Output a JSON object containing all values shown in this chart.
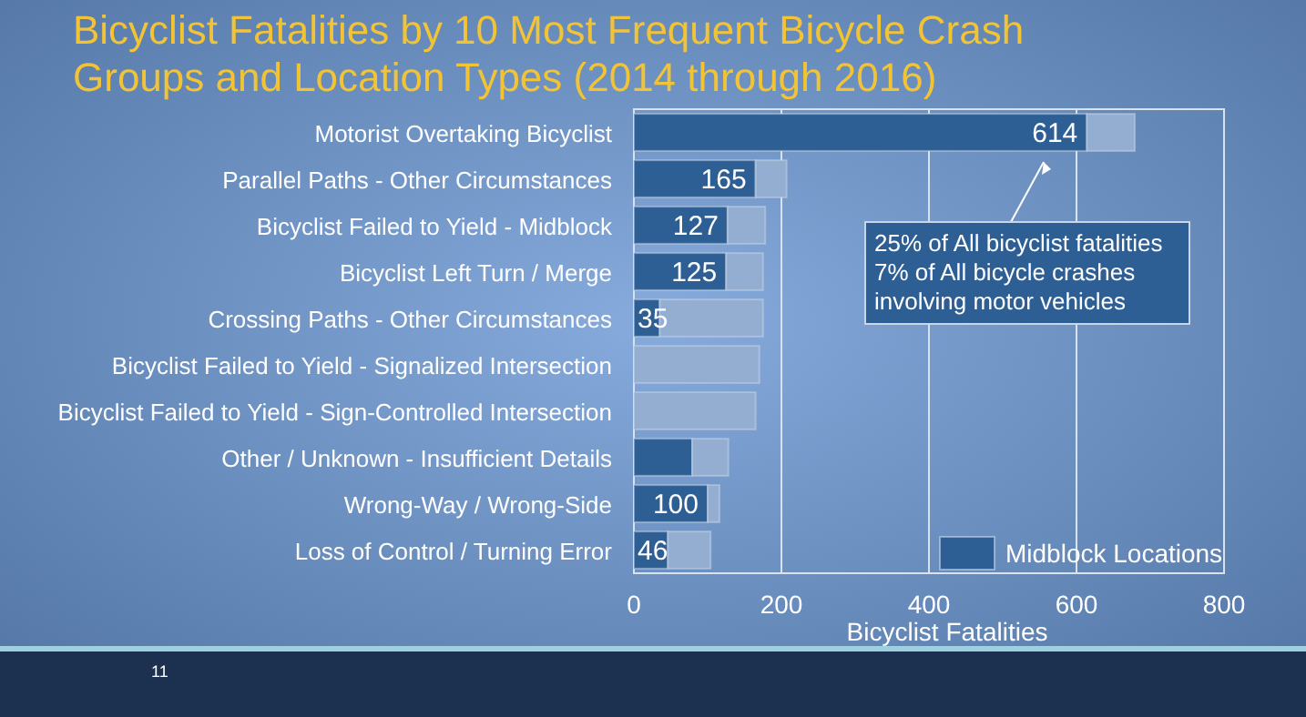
{
  "chart_data": {
    "type": "bar",
    "orientation": "horizontal",
    "stacked": true,
    "title": "Bicyclist Fatalities by 10 Most Frequent Bicycle Crash Groups and Location Types (2014 through 2016)",
    "xlabel": "Bicyclist Fatalities",
    "categories": [
      "Motorist Overtaking Bicyclist",
      "Parallel Paths - Other Circumstances",
      "Bicyclist Failed to Yield - Midblock",
      "Bicyclist Left Turn / Merge",
      "Crossing Paths - Other Circumstances",
      "Bicyclist Failed to Yield - Signalized Intersection",
      "Bicyclist Failed to Yield - Sign-Controlled Intersection",
      "Other / Unknown - Insufficient Details",
      "Wrong-Way / Wrong-Side",
      "Loss of Control / Turning Error"
    ],
    "series": [
      {
        "name": "Midblock Locations",
        "color": "#2e5f94",
        "values": [
          614,
          165,
          127,
          125,
          35,
          0,
          0,
          79,
          100,
          46
        ],
        "value_labels": [
          "614",
          "165",
          "127",
          "125",
          "35",
          null,
          null,
          null,
          "100",
          "46"
        ]
      },
      {
        "color": "#94aed2",
        "values": [
          65,
          42,
          51,
          50,
          140,
          170,
          165,
          49,
          16,
          58
        ]
      }
    ],
    "xlim": [
      0,
      800
    ],
    "xticks": [
      0,
      200,
      400,
      600,
      800
    ],
    "grid": "x",
    "legend": "bottom right",
    "annotations": [
      "25% of All bicyclist fatalities\n7% of All bicycle crashes\ninvolving motor vehicles",
      "11"
    ]
  }
}
